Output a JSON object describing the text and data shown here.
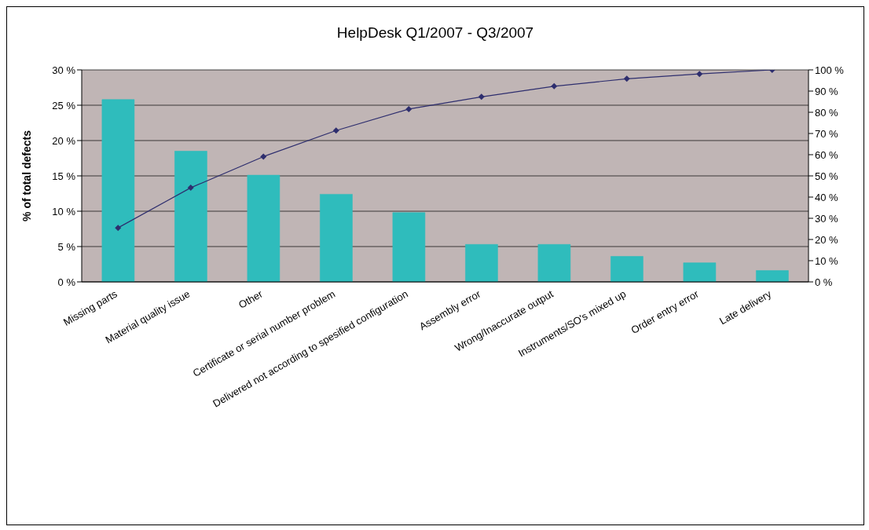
{
  "chart_data": {
    "type": "bar",
    "title": "HelpDesk Q1/2007 - Q3/2007",
    "ylabel": "% of total defects",
    "categories": [
      "Missing parts",
      "Material quality issue",
      "Other",
      "Certificate or serial number problem",
      "Delivered not according to spesified configuration",
      "Assembly error",
      "Wrong/Inaccurate output",
      "Instruments/SO's mixed up",
      "Order entry error",
      "Late delivery"
    ],
    "series": [
      {
        "color": "#2fbcbc",
        "values": [
          25.8,
          18.5,
          15.1,
          12.4,
          9.8,
          5.3,
          5.3,
          3.6,
          2.7,
          1.6
        ]
      },
      {
        "type": "line",
        "axis": "y2",
        "color": "#2e2e6e",
        "values": [
          25.5,
          44.4,
          59.1,
          71.4,
          81.5,
          87.3,
          92.3,
          95.8,
          98.1,
          100
        ]
      }
    ],
    "ylim": [
      0,
      30
    ],
    "yticks": [
      {
        "value": 0,
        "label": "0 %"
      },
      {
        "value": 5,
        "label": "5 %"
      },
      {
        "value": 10,
        "label": "10 %"
      },
      {
        "value": 15,
        "label": "15 %"
      },
      {
        "value": 20,
        "label": "20 %"
      },
      {
        "value": 25,
        "label": "25 %"
      },
      {
        "value": 30,
        "label": "30 %"
      }
    ],
    "y2lim": [
      0,
      100
    ],
    "y2ticks": [
      {
        "value": 0,
        "label": "0 %"
      },
      {
        "value": 10,
        "label": "10 %"
      },
      {
        "value": 20,
        "label": "20 %"
      },
      {
        "value": 30,
        "label": "30 %"
      },
      {
        "value": 40,
        "label": "40 %"
      },
      {
        "value": 50,
        "label": "50 %"
      },
      {
        "value": 60,
        "label": "60 %"
      },
      {
        "value": 70,
        "label": "70 %"
      },
      {
        "value": 80,
        "label": "80 %"
      },
      {
        "value": 90,
        "label": "90 %"
      },
      {
        "value": 100,
        "label": "100 %"
      }
    ],
    "grid": "y",
    "legend": false,
    "marker": "diamond",
    "line_style": "solid"
  }
}
